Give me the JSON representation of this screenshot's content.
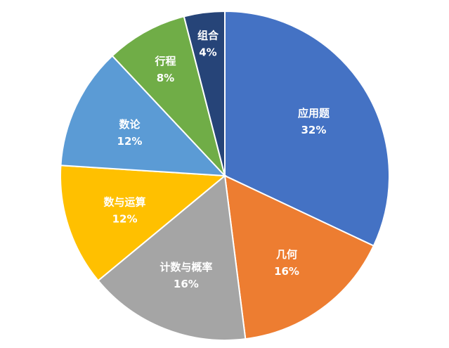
{
  "chart_data": {
    "type": "pie",
    "title": "",
    "start": "top",
    "direction": "clockwise",
    "slices": [
      {
        "label": "应用题",
        "value": 32,
        "value_label": "32%",
        "color": "#4472C4"
      },
      {
        "label": "几何",
        "value": 16,
        "value_label": "16%",
        "color": "#ED7D31"
      },
      {
        "label": "计数与概率",
        "value": 16,
        "value_label": "16%",
        "color": "#A5A5A5"
      },
      {
        "label": "数与运算",
        "value": 12,
        "value_label": "12%",
        "color": "#FFC000"
      },
      {
        "label": "数论",
        "value": 12,
        "value_label": "12%",
        "color": "#5B9BD5"
      },
      {
        "label": "行程",
        "value": 8,
        "value_label": "8%",
        "color": "#70AD47"
      },
      {
        "label": "组合",
        "value": 4,
        "value_label": "4%",
        "color": "#264478"
      }
    ]
  }
}
